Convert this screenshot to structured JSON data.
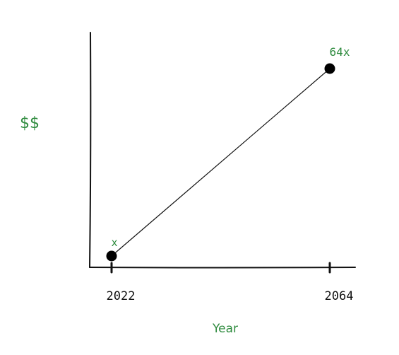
{
  "chart_data": {
    "type": "line",
    "title": "",
    "xlabel": "Year",
    "ylabel": "$$",
    "categories": [
      "2022",
      "2064"
    ],
    "x": [
      2022,
      2064
    ],
    "values": [
      1,
      64
    ],
    "data_labels": [
      "x",
      "64x"
    ],
    "grid": false,
    "colors": {
      "line": "#111111",
      "points": "#000000",
      "label": "#2e8b3e"
    }
  }
}
